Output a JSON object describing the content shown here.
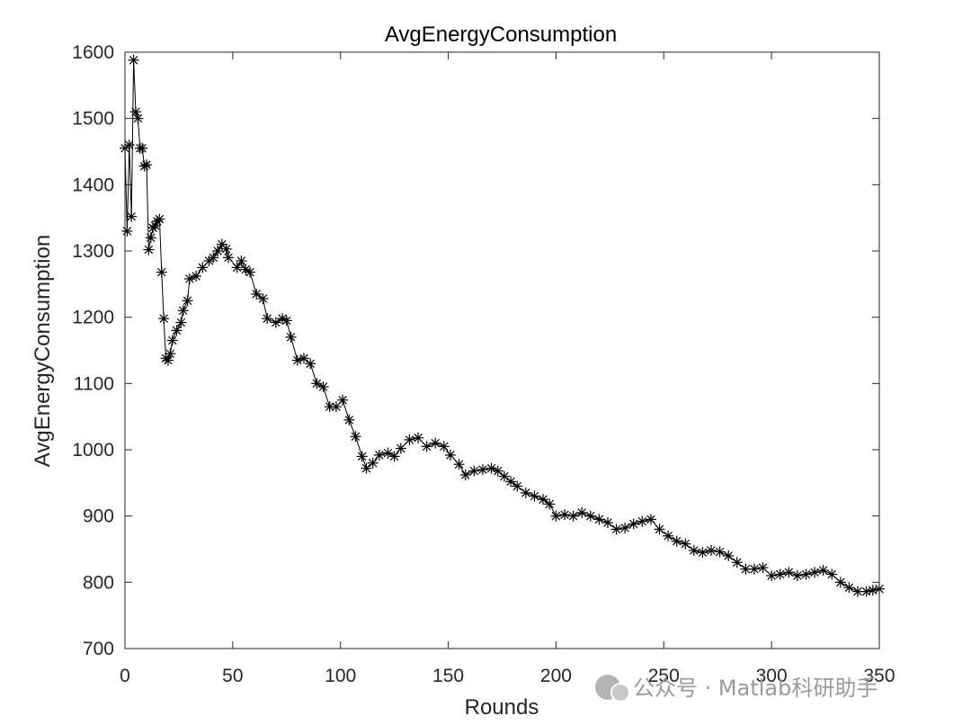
{
  "chart_data": {
    "type": "line",
    "title": "AvgEnergyConsumption",
    "xlabel": "Rounds",
    "ylabel": "AvgEnergyConsumption",
    "xlim": [
      0,
      350
    ],
    "ylim": [
      700,
      1600
    ],
    "xticks": [
      0,
      50,
      100,
      150,
      200,
      250,
      300,
      350
    ],
    "yticks": [
      700,
      800,
      900,
      1000,
      1100,
      1200,
      1300,
      1400,
      1500,
      1600
    ],
    "grid": false,
    "marker": "asterisk",
    "color": "#000000",
    "watermark": "公众号 · Matlab科研助手",
    "keypoints": [
      [
        0,
        1455
      ],
      [
        1,
        1330
      ],
      [
        2,
        1460
      ],
      [
        3,
        1352
      ],
      [
        4,
        1588
      ],
      [
        5,
        1510
      ],
      [
        6,
        1500
      ],
      [
        7,
        1455
      ],
      [
        8,
        1455
      ],
      [
        9,
        1428
      ],
      [
        10,
        1430
      ],
      [
        11,
        1302
      ],
      [
        12,
        1320
      ],
      [
        13,
        1335
      ],
      [
        14,
        1338
      ],
      [
        15,
        1345
      ],
      [
        16,
        1348
      ],
      [
        17,
        1268
      ],
      [
        18,
        1198
      ],
      [
        19,
        1138
      ],
      [
        20,
        1135
      ],
      [
        21,
        1145
      ],
      [
        22,
        1165
      ],
      [
        24,
        1180
      ],
      [
        26,
        1192
      ],
      [
        27,
        1210
      ],
      [
        29,
        1225
      ],
      [
        30,
        1258
      ],
      [
        33,
        1262
      ],
      [
        36,
        1275
      ],
      [
        39,
        1285
      ],
      [
        41,
        1290
      ],
      [
        43,
        1300
      ],
      [
        45,
        1310
      ],
      [
        47,
        1303
      ],
      [
        48,
        1290
      ],
      [
        52,
        1275
      ],
      [
        54,
        1285
      ],
      [
        56,
        1272
      ],
      [
        58,
        1268
      ],
      [
        61,
        1235
      ],
      [
        64,
        1228
      ],
      [
        66,
        1198
      ],
      [
        70,
        1192
      ],
      [
        73,
        1198
      ],
      [
        75,
        1195
      ],
      [
        77,
        1170
      ],
      [
        80,
        1135
      ],
      [
        83,
        1138
      ],
      [
        86,
        1130
      ],
      [
        89,
        1100
      ],
      [
        92,
        1095
      ],
      [
        95,
        1065
      ],
      [
        98,
        1065
      ],
      [
        101,
        1075
      ],
      [
        104,
        1045
      ],
      [
        107,
        1020
      ],
      [
        110,
        990
      ],
      [
        112,
        972
      ],
      [
        115,
        980
      ],
      [
        118,
        992
      ],
      [
        122,
        995
      ],
      [
        125,
        990
      ],
      [
        128,
        1002
      ],
      [
        132,
        1015
      ],
      [
        136,
        1018
      ],
      [
        140,
        1005
      ],
      [
        144,
        1010
      ],
      [
        148,
        1005
      ],
      [
        151,
        992
      ],
      [
        155,
        978
      ],
      [
        158,
        962
      ],
      [
        162,
        968
      ],
      [
        166,
        970
      ],
      [
        170,
        972
      ],
      [
        173,
        968
      ],
      [
        176,
        960
      ],
      [
        179,
        952
      ],
      [
        182,
        945
      ],
      [
        186,
        935
      ],
      [
        190,
        930
      ],
      [
        194,
        925
      ],
      [
        197,
        918
      ],
      [
        200,
        900
      ],
      [
        204,
        902
      ],
      [
        208,
        900
      ],
      [
        212,
        905
      ],
      [
        216,
        900
      ],
      [
        220,
        895
      ],
      [
        224,
        890
      ],
      [
        228,
        880
      ],
      [
        232,
        882
      ],
      [
        236,
        888
      ],
      [
        240,
        892
      ],
      [
        244,
        895
      ],
      [
        248,
        880
      ],
      [
        252,
        870
      ],
      [
        256,
        862
      ],
      [
        260,
        858
      ],
      [
        264,
        848
      ],
      [
        268,
        845
      ],
      [
        272,
        848
      ],
      [
        276,
        846
      ],
      [
        280,
        840
      ],
      [
        284,
        830
      ],
      [
        288,
        820
      ],
      [
        292,
        820
      ],
      [
        296,
        822
      ],
      [
        300,
        810
      ],
      [
        304,
        812
      ],
      [
        308,
        815
      ],
      [
        312,
        810
      ],
      [
        316,
        812
      ],
      [
        320,
        815
      ],
      [
        324,
        818
      ],
      [
        328,
        812
      ],
      [
        332,
        800
      ],
      [
        336,
        792
      ],
      [
        340,
        786
      ],
      [
        344,
        786
      ],
      [
        347,
        788
      ],
      [
        350,
        790
      ]
    ]
  }
}
